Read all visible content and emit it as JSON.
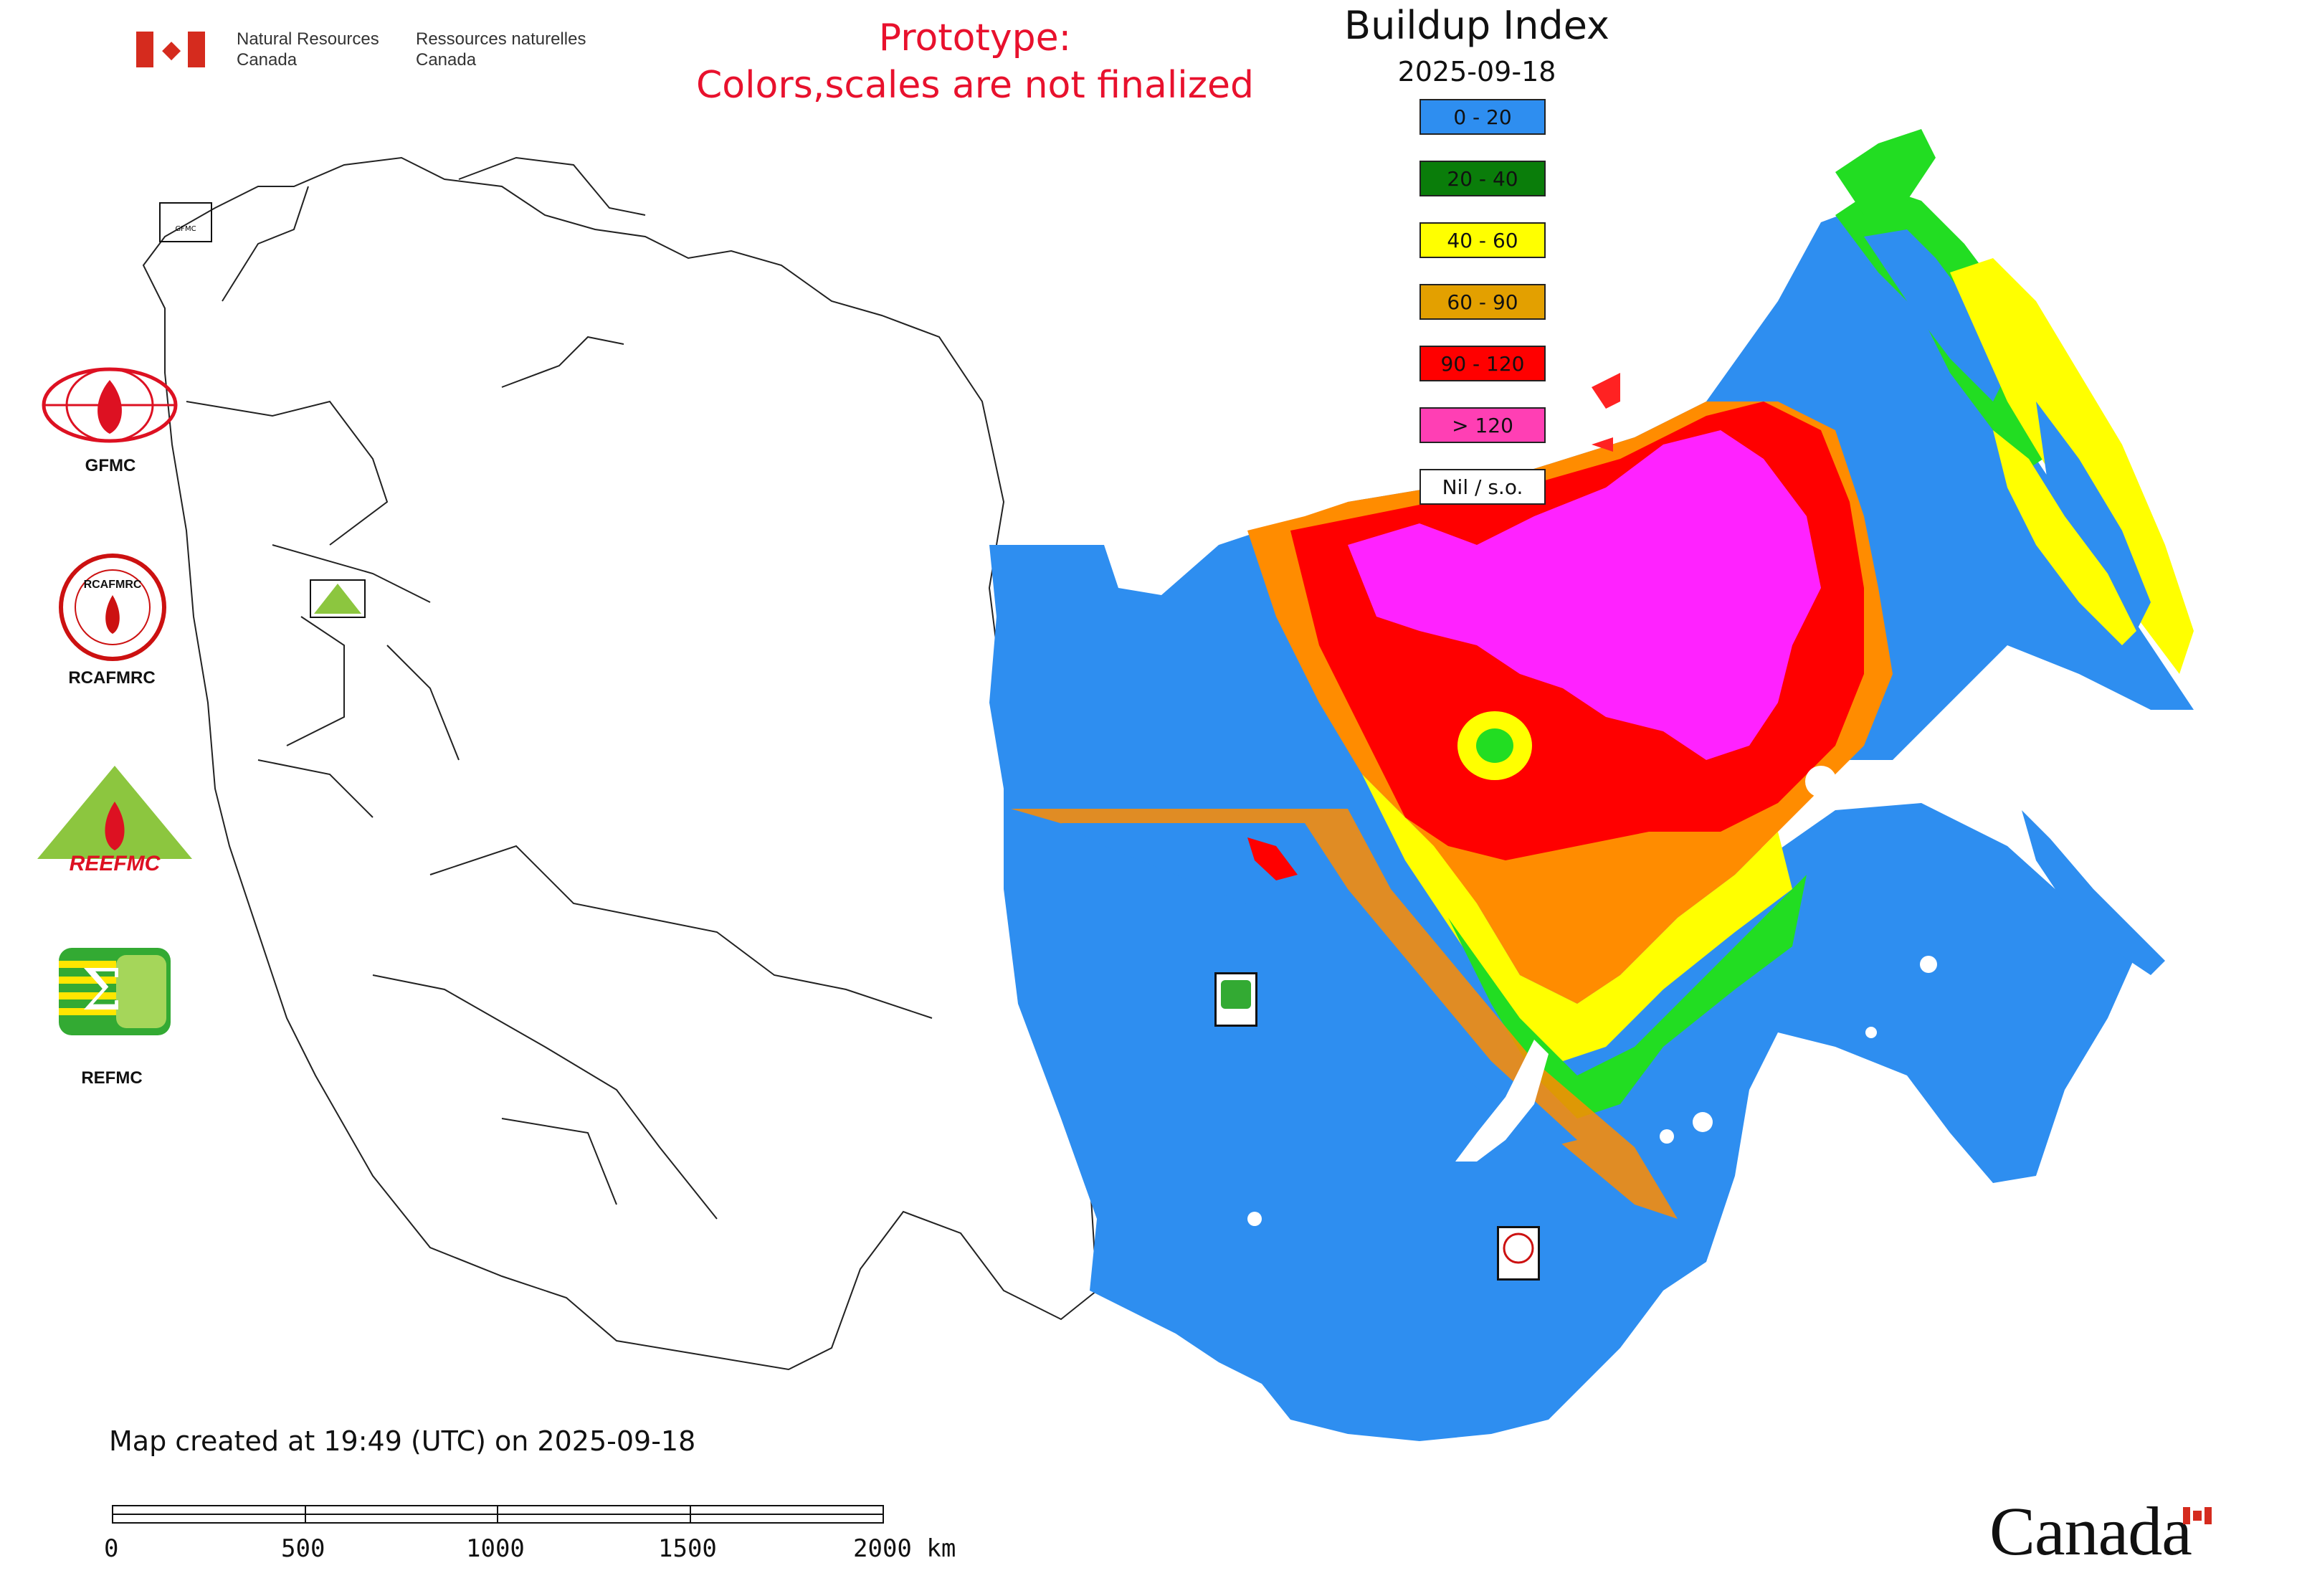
{
  "header": {
    "nrcan_en_1": "Natural Resources",
    "nrcan_en_2": "Canada",
    "nrcan_fr_1": "Ressources naturelles",
    "nrcan_fr_2": "Canada",
    "prototype_line1": "Prototype:",
    "prototype_line2": "Colors,scales are not finalized"
  },
  "legend": {
    "title": "Buildup Index",
    "date": "2025-09-18",
    "classes": [
      {
        "label": "0 - 20",
        "color": "#2e8ef0"
      },
      {
        "label": "20 - 40",
        "color": "#0a7d0a"
      },
      {
        "label": "40 - 60",
        "color": "#ffff00"
      },
      {
        "label": "60 - 90",
        "color": "#e3a000"
      },
      {
        "label": "90 - 120",
        "color": "#ff0000"
      },
      {
        "label": "> 120",
        "color": "#ff3fb4"
      },
      {
        "label": "Nil / s.o.",
        "color": "#ffffff"
      }
    ]
  },
  "logos": {
    "gfmc": "GFMC",
    "rcafmrc": "RCAFMRC",
    "reefmc": "REEFMC",
    "refmc": "REFMC"
  },
  "footer": {
    "created": "Map created at 19:49 (UTC) on 2025-09-18",
    "scale_ticks": [
      "0",
      "500",
      "1000",
      "1500",
      "2000 km"
    ],
    "wordmark": "Canada"
  },
  "colors": {
    "blue": "#2e8ef0",
    "green": "#22dd22",
    "yellow": "#ffff00",
    "orange": "#ff8c00",
    "red": "#ff0000",
    "magenta": "#ff22ff",
    "accent_red": "#e8112d"
  }
}
